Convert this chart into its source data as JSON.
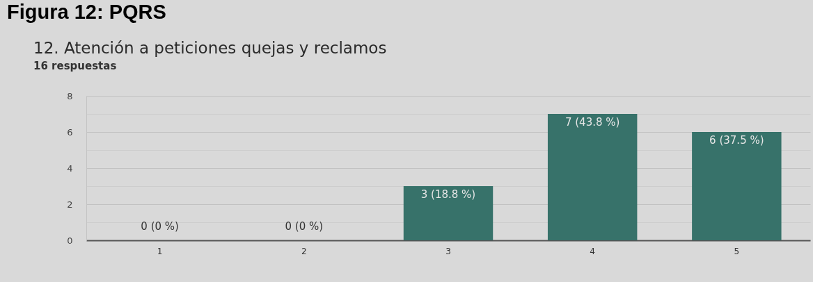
{
  "chart_data": {
    "type": "bar",
    "title": "12. Atención a peticiones quejas y reclamos",
    "subtitle": "16 respuestas",
    "annotations": [
      "Figura 12: PQRS"
    ],
    "categories": [
      "1",
      "2",
      "3",
      "4",
      "5"
    ],
    "values": [
      0,
      0,
      3,
      7,
      6
    ],
    "color": "#37726a",
    "value_labels": [
      "0 (0 %)",
      "0 (0 %)",
      "3 (18.8 %)",
      "7 (43.8 %)",
      "6 (37.5 %)"
    ],
    "ylim": [
      0,
      8
    ],
    "yticks": [
      0,
      {
        "value": 1,
        "label": null
      },
      2,
      {
        "value": 3,
        "label": null
      },
      4,
      {
        "value": 5,
        "label": null
      },
      6,
      {
        "value": 7,
        "label": null
      },
      8
    ],
    "grid": "y"
  }
}
